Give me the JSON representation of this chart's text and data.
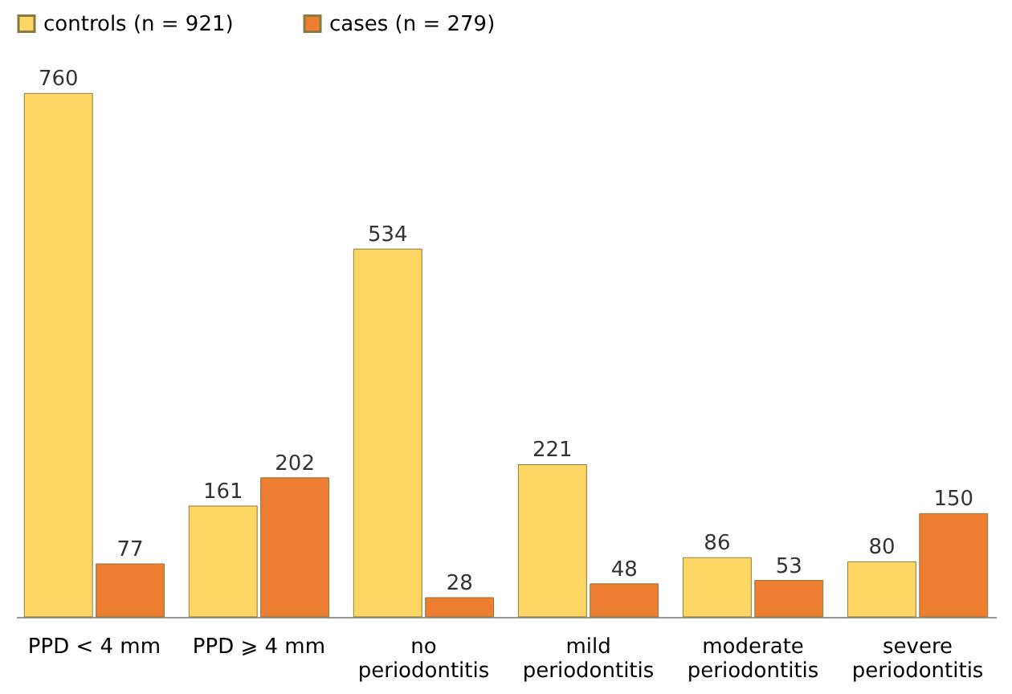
{
  "chart_data": {
    "type": "bar",
    "categories": [
      "PPD < 4 mm",
      "PPD ⩾ 4 mm",
      "no periodontitis",
      "mild periodontitis",
      "moderate periodontitis",
      "severe periodontitis"
    ],
    "series": [
      {
        "name": "controls (n = 921)",
        "color": "#fdd663",
        "values": [
          760,
          161,
          534,
          221,
          86,
          80
        ]
      },
      {
        "name": "cases (n = 279)",
        "color": "#ed7d31",
        "values": [
          77,
          202,
          28,
          48,
          53,
          150
        ]
      }
    ],
    "data_labels": true,
    "legend": "top"
  }
}
